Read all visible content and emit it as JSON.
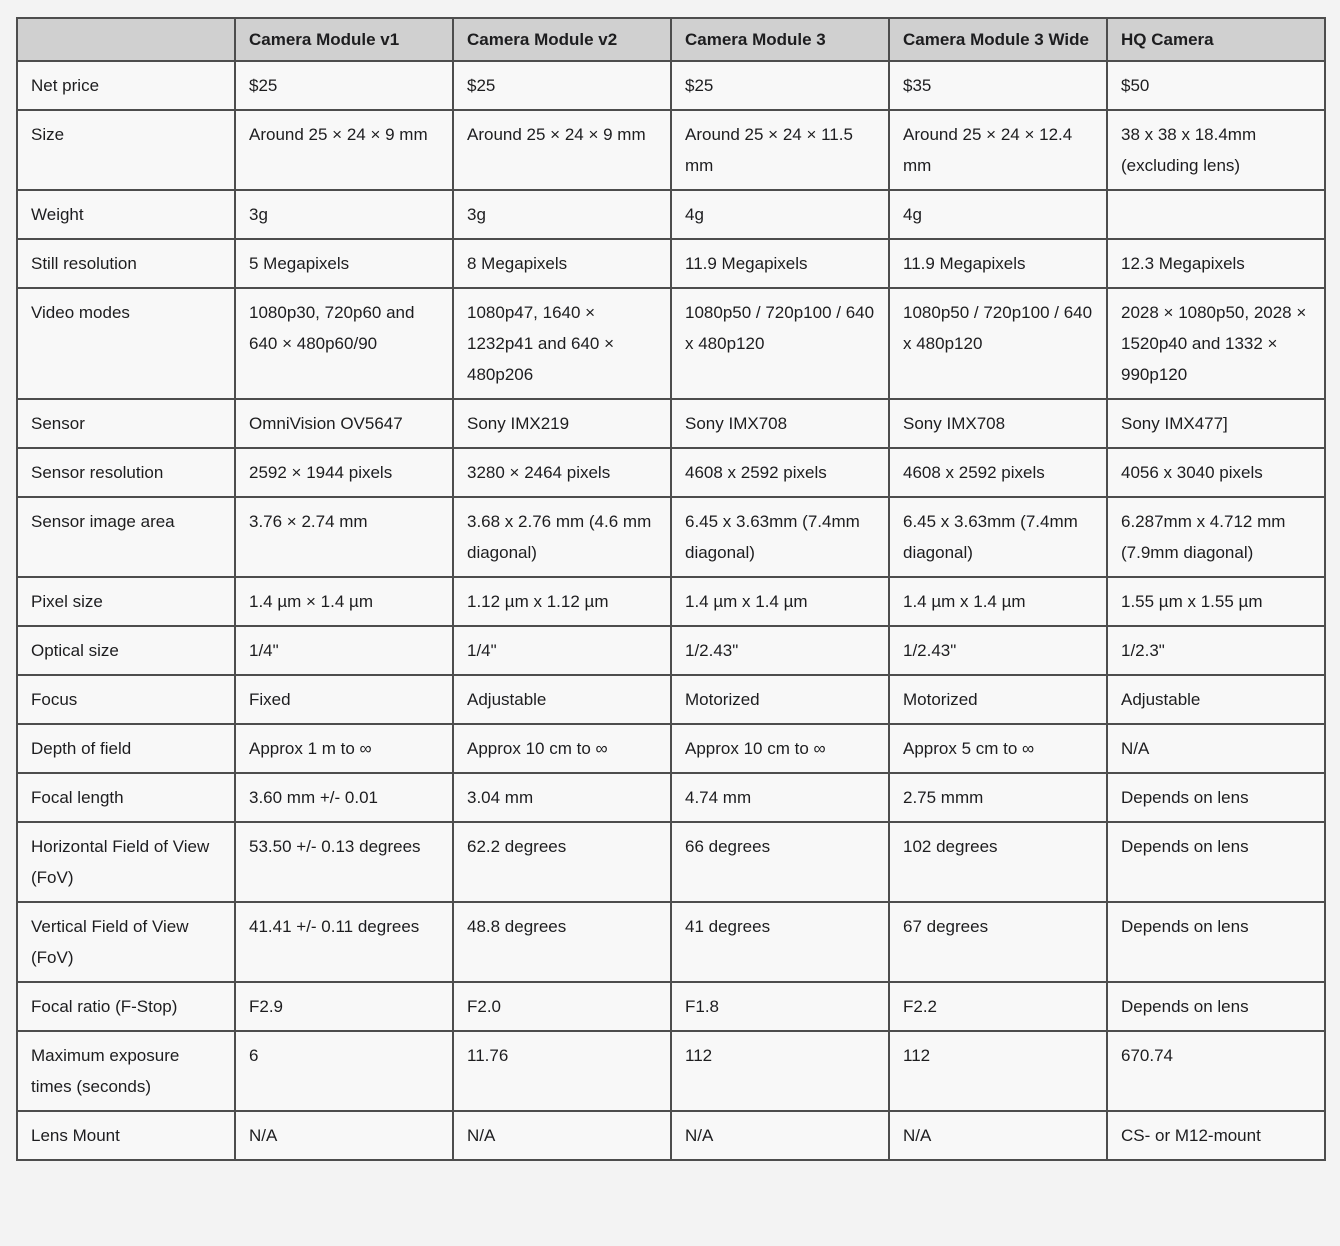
{
  "colors": {
    "page_background": "#f3f3f3",
    "header_background": "#d0d0d0",
    "cell_background": "#f8f8f8",
    "border": "#4d4d4d",
    "text": "#1d1d1f"
  },
  "table": {
    "corner": "",
    "columns": [
      "Camera Module v1",
      "Camera Module v2",
      "Camera Module 3",
      "Camera Module 3 Wide",
      "HQ Camera"
    ],
    "rows": [
      {
        "label": "Net price",
        "values": [
          "$25",
          "$25",
          "$25",
          "$35",
          "$50"
        ]
      },
      {
        "label": "Size",
        "values": [
          "Around 25 × 24 × 9 mm",
          "Around 25 × 24 × 9 mm",
          "Around 25 × 24 × 11.5 mm",
          "Around 25 × 24 × 12.4 mm",
          "38 x 38 x 18.4mm (excluding lens)"
        ]
      },
      {
        "label": "Weight",
        "values": [
          "3g",
          "3g",
          "4g",
          "4g",
          ""
        ]
      },
      {
        "label": "Still resolution",
        "values": [
          "5 Megapixels",
          "8 Megapixels",
          "11.9 Megapixels",
          "11.9 Megapixels",
          "12.3 Megapixels"
        ]
      },
      {
        "label": "Video modes",
        "values": [
          "1080p30, 720p60 and 640 × 480p60/90",
          "1080p47, 1640 × 1232p41 and 640 × 480p206",
          "1080p50 / 720p100 / 640 x 480p120",
          "1080p50 / 720p100 / 640 x 480p120",
          "2028 × 1080p50, 2028 × 1520p40 and 1332 × 990p120"
        ]
      },
      {
        "label": "Sensor",
        "values": [
          "OmniVision OV5647",
          "Sony IMX219",
          "Sony IMX708",
          "Sony IMX708",
          "Sony IMX477]"
        ]
      },
      {
        "label": "Sensor resolution",
        "values": [
          "2592 × 1944 pixels",
          "3280 × 2464 pixels",
          "4608 x 2592 pixels",
          "4608 x 2592 pixels",
          "4056 x 3040 pixels"
        ]
      },
      {
        "label": "Sensor image area",
        "values": [
          "3.76 × 2.74 mm",
          "3.68 x 2.76 mm (4.6 mm diagonal)",
          "6.45 x 3.63mm (7.4mm diagonal)",
          "6.45 x 3.63mm (7.4mm diagonal)",
          "6.287mm x 4.712 mm (7.9mm diagonal)"
        ]
      },
      {
        "label": "Pixel size",
        "values": [
          "1.4 µm × 1.4 µm",
          "1.12 µm x 1.12 µm",
          "1.4 µm x 1.4 µm",
          "1.4 µm x 1.4 µm",
          "1.55 µm x 1.55 µm"
        ]
      },
      {
        "label": "Optical size",
        "values": [
          "1/4\"",
          "1/4\"",
          "1/2.43\"",
          "1/2.43\"",
          "1/2.3\""
        ]
      },
      {
        "label": "Focus",
        "values": [
          "Fixed",
          "Adjustable",
          "Motorized",
          "Motorized",
          "Adjustable"
        ]
      },
      {
        "label": "Depth of field",
        "values": [
          "Approx 1 m to ∞",
          "Approx 10 cm to ∞",
          "Approx 10 cm to ∞",
          "Approx 5 cm to ∞",
          "N/A"
        ]
      },
      {
        "label": "Focal length",
        "values": [
          "3.60 mm +/- 0.01",
          "3.04 mm",
          "4.74 mm",
          "2.75 mmm",
          "Depends on lens"
        ]
      },
      {
        "label": "Horizontal Field of View (FoV)",
        "values": [
          "53.50 +/- 0.13 degrees",
          "62.2 degrees",
          "66 degrees",
          "102 degrees",
          "Depends on lens"
        ]
      },
      {
        "label": "Vertical Field of View (FoV)",
        "values": [
          "41.41 +/- 0.11 degrees",
          "48.8 degrees",
          "41 degrees",
          "67 degrees",
          "Depends on lens"
        ]
      },
      {
        "label": "Focal ratio (F-Stop)",
        "values": [
          "F2.9",
          "F2.0",
          "F1.8",
          "F2.2",
          "Depends on lens"
        ]
      },
      {
        "label": "Maximum exposure times (seconds)",
        "values": [
          "6",
          "11.76",
          "112",
          "112",
          "670.74"
        ]
      },
      {
        "label": "Lens Mount",
        "values": [
          "N/A",
          "N/A",
          "N/A",
          "N/A",
          "CS- or M12-mount"
        ]
      }
    ]
  }
}
